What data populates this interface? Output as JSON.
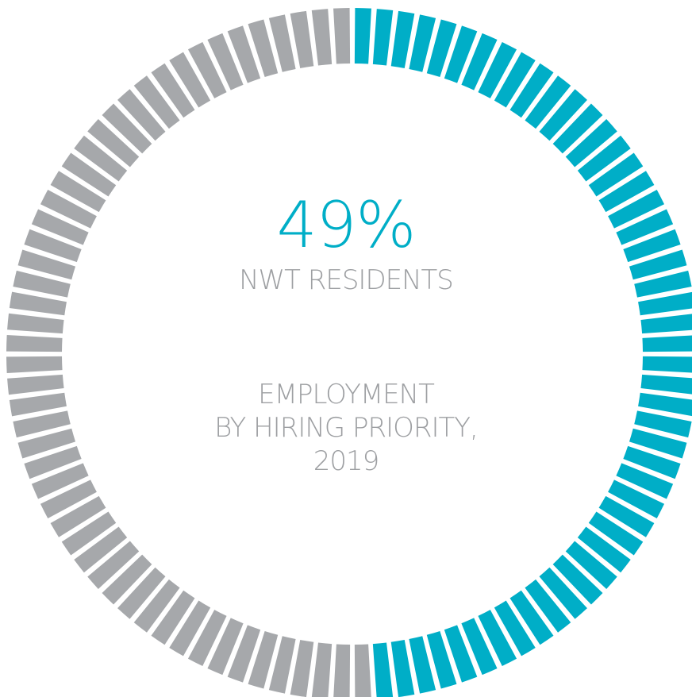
{
  "chart_data": {
    "type": "donut",
    "total_segments": 100,
    "series": [
      {
        "name": "NWT Residents",
        "value": 49,
        "color": "#00aec7"
      },
      {
        "value": 51,
        "color": "#a6a8ab"
      }
    ],
    "highlight_value": "49%",
    "highlight_label": "NWT RESIDENTS",
    "title_lines": [
      "EMPLOYMENT",
      "BY HIRING PRIORITY,",
      "2019"
    ]
  },
  "colors": {
    "accent": "#00aec7",
    "grey": "#a6a8ab",
    "text_grey": "#9d9fa2"
  }
}
